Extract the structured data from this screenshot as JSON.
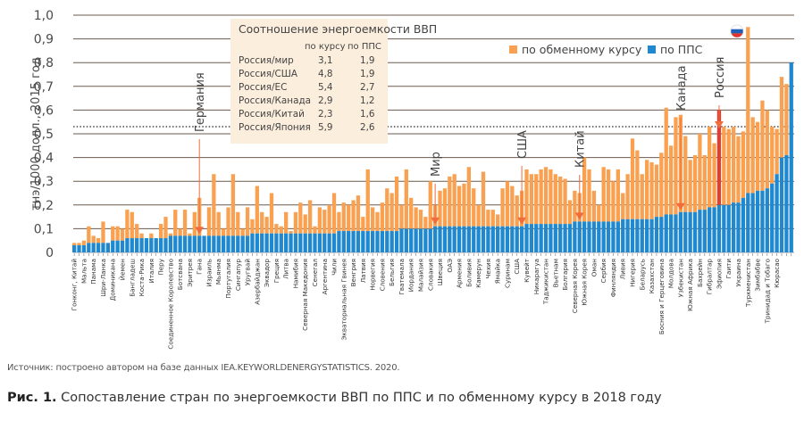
{
  "figure": {
    "source": "Источник: построено автором на базе данных IEA.KEYWORLDENERGYSTATISTICS. 2020.",
    "caption_prefix": "Рис. 1.",
    "caption_text": " Сопоставление стран по энергоемкости ВВП по ППС и по обменному курсу в 2018 году"
  },
  "ratio_table": {
    "title": "Соотношение энергоемкости ВВП",
    "col_rate": "по курсу",
    "col_ppp": "по ППС",
    "rows": [
      {
        "label": "Россия/мир",
        "rate": "3,1",
        "ppp": "1,9"
      },
      {
        "label": "Россия/США",
        "rate": "4,8",
        "ppp": "1,9"
      },
      {
        "label": "Россия/ЕС",
        "rate": "5,4",
        "ppp": "2,7"
      },
      {
        "label": "Россия/Канада",
        "rate": "2,9",
        "ppp": "1,2"
      },
      {
        "label": "Россия/Китай",
        "rate": "2,3",
        "ppp": "1,6"
      },
      {
        "label": "Россия/Япония",
        "rate": "5,9",
        "ppp": "2,6"
      }
    ]
  },
  "colors": {
    "exchange": "#f9a150",
    "ppp": "#1f88cf",
    "russia": "#e63c2e",
    "arrow": "#f26b3a",
    "grid": "#6b5a4e"
  },
  "chart_data": {
    "type": "bar",
    "title": "",
    "xlabel": "",
    "ylabel": "тнэ/1000 долл., 2015 год",
    "ylim": [
      0,
      1.0
    ],
    "yticks": [
      "0",
      "0,1",
      "0,2",
      "0,3",
      "0,4",
      "0,5",
      "0,6",
      "0,7",
      "0,8",
      "0,9",
      "1,0"
    ],
    "grid": true,
    "reference_line": {
      "value": 0.53,
      "style": "dotted",
      "meaning": "Россия по обменному курсу"
    },
    "legend": {
      "position": "top-right",
      "entries": [
        "по обменному курсу",
        "по ППС"
      ]
    },
    "series_names": {
      "exchange": "по обменному курсу",
      "ppp": "по ППС"
    },
    "annotations": [
      {
        "label": "Германия",
        "index": 26
      },
      {
        "label": "Мир",
        "index": 75
      },
      {
        "label": "США",
        "index": 93
      },
      {
        "label": "Китай",
        "index": 105
      },
      {
        "label": "Канада",
        "index": 126
      },
      {
        "label": "Россия",
        "index": 134
      }
    ],
    "highlight_index": 134,
    "categories": [
      "Гонконг, Китай",
      "",
      "Мальта",
      "",
      "Панама",
      "",
      "Шри-Ланка",
      "",
      "Доминикана",
      "",
      "Йемен",
      "",
      "Бангладеш",
      "",
      "Коста-Рика",
      "",
      "Италия",
      "",
      "Перу",
      "",
      "Соединенное Королевство",
      "",
      "Ботсвана",
      "",
      "Эритрея",
      "",
      "Гана",
      "",
      "Израиль",
      "",
      "Мьянма",
      "",
      "Португалия",
      "",
      "Сингапур",
      "",
      "Уругвай",
      "",
      "Азербайджан",
      "",
      "Эквадор",
      "",
      "Греция",
      "",
      "Литва",
      "",
      "Намибия",
      "",
      "Северная Македония",
      "",
      "Сенегал",
      "",
      "Аргентина",
      "",
      "Чили",
      "",
      "Экваториальная Гвинея",
      "",
      "Венгрия",
      "",
      "Латвия",
      "",
      "Норвегия",
      "",
      "Словения",
      "",
      "Бельгия",
      "",
      "Гватемала",
      "",
      "Иордания",
      "",
      "Малайзия",
      "",
      "Словакия",
      "",
      "Швеция",
      "",
      "ОАЭ",
      "",
      "Армения",
      "",
      "Боливия",
      "",
      "Камерун",
      "",
      "Чехия",
      "",
      "Ямайка",
      "",
      "Суринам",
      "",
      "США",
      "",
      "Кувейт",
      "",
      "Никарагуа",
      "",
      "Таджикистан",
      "",
      "Вьетнам",
      "",
      "Болгария",
      "",
      "Северная Корея",
      "",
      "Южная Корея",
      "",
      "Оман",
      "",
      "Сербия",
      "",
      "Финляндия",
      "",
      "Ливия",
      "",
      "Нигерия",
      "",
      "Беларусь",
      "",
      "Казахстан",
      "",
      "Босния и Герцеговина",
      "",
      "Молдова",
      "",
      "Узбекистан",
      "",
      "Южная Африка",
      "",
      "Бахрейн",
      "",
      "Гибралтар",
      "",
      "Эфиопия",
      "",
      "Гаити",
      "",
      "Украина",
      "",
      "Туркменистан",
      "",
      "Зимбабве",
      "",
      "Тринидад и Тобаго",
      "",
      "Кюрасао"
    ],
    "ppp": [
      0.03,
      0.03,
      0.03,
      0.04,
      0.04,
      0.04,
      0.04,
      0.04,
      0.05,
      0.05,
      0.05,
      0.06,
      0.06,
      0.06,
      0.06,
      0.06,
      0.06,
      0.06,
      0.06,
      0.06,
      0.07,
      0.07,
      0.07,
      0.07,
      0.07,
      0.07,
      0.07,
      0.07,
      0.07,
      0.07,
      0.07,
      0.07,
      0.07,
      0.07,
      0.07,
      0.07,
      0.07,
      0.08,
      0.08,
      0.08,
      0.08,
      0.08,
      0.08,
      0.08,
      0.08,
      0.08,
      0.08,
      0.08,
      0.08,
      0.08,
      0.08,
      0.08,
      0.08,
      0.08,
      0.08,
      0.09,
      0.09,
      0.09,
      0.09,
      0.09,
      0.09,
      0.09,
      0.09,
      0.09,
      0.09,
      0.09,
      0.09,
      0.09,
      0.1,
      0.1,
      0.1,
      0.1,
      0.1,
      0.1,
      0.1,
      0.11,
      0.11,
      0.11,
      0.11,
      0.11,
      0.11,
      0.11,
      0.11,
      0.11,
      0.11,
      0.11,
      0.11,
      0.11,
      0.11,
      0.11,
      0.11,
      0.11,
      0.11,
      0.11,
      0.12,
      0.12,
      0.12,
      0.12,
      0.12,
      0.12,
      0.12,
      0.12,
      0.12,
      0.12,
      0.13,
      0.13,
      0.13,
      0.13,
      0.13,
      0.13,
      0.13,
      0.13,
      0.13,
      0.13,
      0.14,
      0.14,
      0.14,
      0.14,
      0.14,
      0.14,
      0.14,
      0.15,
      0.15,
      0.16,
      0.16,
      0.16,
      0.17,
      0.17,
      0.17,
      0.17,
      0.18,
      0.18,
      0.19,
      0.19,
      0.2,
      0.2,
      0.2,
      0.21,
      0.21,
      0.23,
      0.25,
      0.25,
      0.26,
      0.26,
      0.27,
      0.29,
      0.33,
      0.4,
      0.41,
      0.8
    ],
    "exchange": [
      0.04,
      0.04,
      0.05,
      0.11,
      0.07,
      0.06,
      0.13,
      0.04,
      0.11,
      0.11,
      0.1,
      0.18,
      0.17,
      0.12,
      0.08,
      0.06,
      0.08,
      0.06,
      0.12,
      0.15,
      0.08,
      0.18,
      0.1,
      0.18,
      0.08,
      0.17,
      0.23,
      0.07,
      0.19,
      0.33,
      0.17,
      0.1,
      0.19,
      0.33,
      0.17,
      0.1,
      0.19,
      0.14,
      0.28,
      0.17,
      0.15,
      0.25,
      0.12,
      0.11,
      0.17,
      0.09,
      0.17,
      0.21,
      0.16,
      0.22,
      0.11,
      0.19,
      0.18,
      0.2,
      0.25,
      0.17,
      0.21,
      0.2,
      0.22,
      0.24,
      0.15,
      0.35,
      0.19,
      0.17,
      0.21,
      0.27,
      0.25,
      0.32,
      0.2,
      0.35,
      0.23,
      0.19,
      0.18,
      0.15,
      0.3,
      0.2,
      0.26,
      0.27,
      0.32,
      0.33,
      0.28,
      0.29,
      0.36,
      0.27,
      0.2,
      0.34,
      0.18,
      0.18,
      0.16,
      0.27,
      0.3,
      0.28,
      0.24,
      0.26,
      0.35,
      0.33,
      0.33,
      0.35,
      0.36,
      0.35,
      0.33,
      0.32,
      0.31,
      0.22,
      0.26,
      0.25,
      0.4,
      0.35,
      0.26,
      0.2,
      0.36,
      0.35,
      0.3,
      0.35,
      0.25,
      0.33,
      0.48,
      0.43,
      0.33,
      0.39,
      0.38,
      0.37,
      0.42,
      0.61,
      0.45,
      0.57,
      0.58,
      0.49,
      0.39,
      0.41,
      0.5,
      0.41,
      0.53,
      0.46,
      0.6,
      0.53,
      0.52,
      0.53,
      0.49,
      0.51,
      0.95,
      0.57,
      0.55,
      0.64,
      0.6,
      0.53,
      0.52,
      0.74,
      0.71,
      0.8
    ]
  }
}
